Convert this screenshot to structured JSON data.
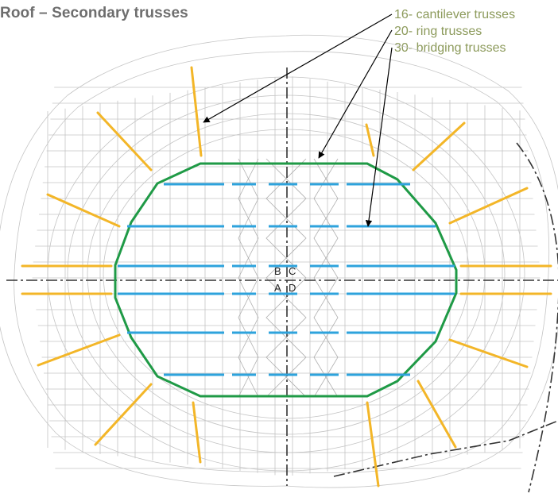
{
  "title": "Roof – Secondary trusses",
  "callouts": [
    {
      "text": "16- cantilever trusses"
    },
    {
      "text": "20- ring trusses"
    },
    {
      "text": "30- bridging trusses"
    }
  ],
  "quadrant_labels": [
    "B",
    "C",
    "A",
    "D"
  ],
  "colors": {
    "title": "#6e6e6e",
    "callout_text": "#8c9a5b",
    "cantilever": "#f3b628",
    "ring": "#1f9a46",
    "bridging": "#2ea3dc",
    "structure_lines": "#c4c4c4",
    "axis_lines": "#333333"
  },
  "legend_items": [
    "cantilever trusses",
    "ring trusses",
    "bridging trusses"
  ]
}
